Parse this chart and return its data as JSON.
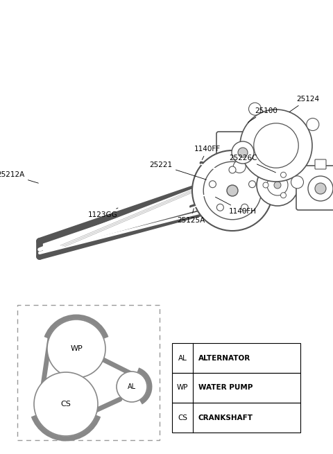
{
  "bg_color": "#ffffff",
  "legend_table": {
    "rows": [
      [
        "AL",
        "ALTERNATOR"
      ],
      [
        "WP",
        "WATER PUMP"
      ],
      [
        "CS",
        "CRANKSHAFT"
      ]
    ]
  }
}
